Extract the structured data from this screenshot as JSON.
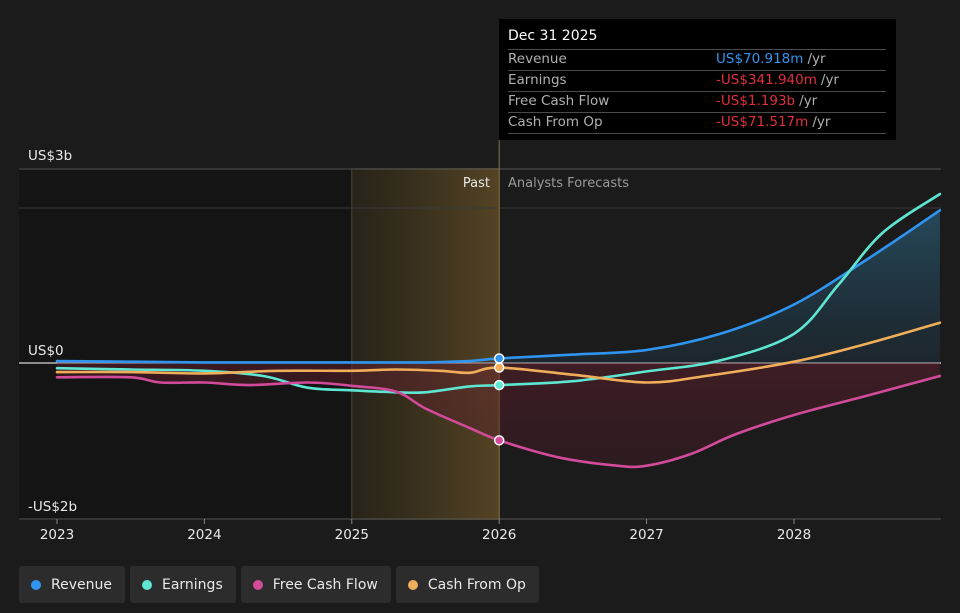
{
  "chart_data": {
    "type": "area",
    "y_axis": {
      "top_label": "US$3b",
      "zero_label": "US$0",
      "bottom_label": "-US$2b",
      "ylim": [
        -2.0,
        3.0
      ]
    },
    "x_ticks": [
      "2023",
      "2024",
      "2025",
      "2026",
      "2027",
      "2028"
    ],
    "divider": {
      "past_label": "Past",
      "forecast_label": "Analysts Forecasts"
    },
    "series": [
      {
        "name": "Revenue",
        "color": "#2f95f0",
        "points": [
          [
            2023.0,
            0.03
          ],
          [
            2023.5,
            0.02
          ],
          [
            2024.0,
            0.01
          ],
          [
            2024.5,
            0.01
          ],
          [
            2025.0,
            0.01
          ],
          [
            2025.5,
            0.01
          ],
          [
            2025.8,
            0.03
          ],
          [
            2026.0,
            0.07
          ],
          [
            2026.5,
            0.13
          ],
          [
            2027.0,
            0.2
          ],
          [
            2027.5,
            0.45
          ],
          [
            2028.0,
            0.9
          ],
          [
            2028.5,
            1.6
          ],
          [
            2029.0,
            2.35
          ]
        ]
      },
      {
        "name": "Earnings",
        "color": "#5ee6d2",
        "points": [
          [
            2023.0,
            -0.08
          ],
          [
            2023.5,
            -0.1
          ],
          [
            2024.0,
            -0.12
          ],
          [
            2024.4,
            -0.2
          ],
          [
            2024.7,
            -0.38
          ],
          [
            2025.0,
            -0.42
          ],
          [
            2025.3,
            -0.45
          ],
          [
            2025.5,
            -0.45
          ],
          [
            2025.8,
            -0.36
          ],
          [
            2026.0,
            -0.34
          ],
          [
            2026.5,
            -0.28
          ],
          [
            2027.0,
            -0.13
          ],
          [
            2027.5,
            0.04
          ],
          [
            2028.0,
            0.45
          ],
          [
            2028.3,
            1.2
          ],
          [
            2028.6,
            2.0
          ],
          [
            2029.0,
            2.6
          ]
        ]
      },
      {
        "name": "Free Cash Flow",
        "color": "#d14b9a",
        "points": [
          [
            2023.0,
            -0.22
          ],
          [
            2023.5,
            -0.22
          ],
          [
            2023.7,
            -0.3
          ],
          [
            2024.0,
            -0.3
          ],
          [
            2024.3,
            -0.34
          ],
          [
            2024.7,
            -0.3
          ],
          [
            2025.0,
            -0.35
          ],
          [
            2025.3,
            -0.44
          ],
          [
            2025.5,
            -0.7
          ],
          [
            2025.8,
            -1.0
          ],
          [
            2026.0,
            -1.19
          ],
          [
            2026.4,
            -1.45
          ],
          [
            2026.8,
            -1.58
          ],
          [
            2027.0,
            -1.58
          ],
          [
            2027.3,
            -1.4
          ],
          [
            2027.6,
            -1.1
          ],
          [
            2028.0,
            -0.8
          ],
          [
            2028.5,
            -0.5
          ],
          [
            2029.0,
            -0.2
          ]
        ]
      },
      {
        "name": "Cash From Op",
        "color": "#f0ae5a",
        "points": [
          [
            2023.0,
            -0.14
          ],
          [
            2023.5,
            -0.14
          ],
          [
            2024.0,
            -0.16
          ],
          [
            2024.5,
            -0.12
          ],
          [
            2025.0,
            -0.12
          ],
          [
            2025.3,
            -0.1
          ],
          [
            2025.6,
            -0.12
          ],
          [
            2025.8,
            -0.15
          ],
          [
            2026.0,
            -0.07
          ],
          [
            2026.5,
            -0.18
          ],
          [
            2027.0,
            -0.3
          ],
          [
            2027.4,
            -0.2
          ],
          [
            2028.0,
            0.02
          ],
          [
            2028.5,
            0.3
          ],
          [
            2029.0,
            0.62
          ]
        ]
      }
    ],
    "highlight_x": 2026.0
  },
  "tooltip": {
    "date": "Dec 31 2025",
    "rows": [
      {
        "label": "Revenue",
        "value": "US$70.918m",
        "unit": "/yr"
      },
      {
        "label": "Earnings",
        "value": "-US$341.940m",
        "unit": "/yr"
      },
      {
        "label": "Free Cash Flow",
        "value": "-US$1.193b",
        "unit": "/yr"
      },
      {
        "label": "Cash From Op",
        "value": "-US$71.517m",
        "unit": "/yr"
      }
    ]
  },
  "legend": [
    {
      "label": "Revenue",
      "color": "#2f95f0"
    },
    {
      "label": "Earnings",
      "color": "#5ee6d2"
    },
    {
      "label": "Free Cash Flow",
      "color": "#d14b9a"
    },
    {
      "label": "Cash From Op",
      "color": "#f0ae5a"
    }
  ]
}
